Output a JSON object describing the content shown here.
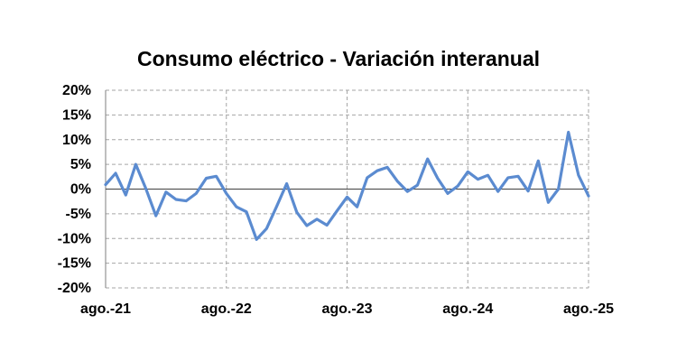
{
  "chart_data": {
    "type": "line",
    "title": "Consumo eléctrico - Variación interanual",
    "xlabel": "",
    "ylabel": "",
    "x_tick_labels": [
      "ago.-21",
      "ago.-22",
      "ago.-23",
      "ago.-24",
      "ago.-25"
    ],
    "y_tick_labels": [
      "20%",
      "15%",
      "10%",
      "5%",
      "0%",
      "-5%",
      "-10%",
      "-15%",
      "-20%"
    ],
    "ylim": [
      -20,
      20
    ],
    "y_ticks": [
      20,
      15,
      10,
      5,
      0,
      -5,
      -10,
      -15,
      -20
    ],
    "x_range_months": "ago.-21 to ago.-25",
    "grid": "dashed vertical and horizontal",
    "series_color": "#5B8BD0",
    "series": [
      {
        "values": [
          0.9,
          3.2,
          -1.2,
          5.0,
          0.1,
          -5.4,
          -0.6,
          -2.1,
          -2.4,
          -0.9,
          2.2,
          2.6,
          -0.9,
          -3.6,
          -4.6,
          -10.2,
          -8.0,
          -3.5,
          1.1,
          -4.7,
          -7.4,
          -6.1,
          -7.3,
          -4.4,
          -1.6,
          -3.6,
          2.3,
          3.7,
          4.4,
          1.6,
          -0.5,
          0.8,
          6.1,
          2.2,
          -0.9,
          0.6,
          3.5,
          2.0,
          2.8,
          -0.5,
          2.3,
          2.6,
          -0.4,
          5.7,
          -2.7,
          0.0,
          11.5,
          2.8,
          -1.4
        ]
      }
    ]
  }
}
